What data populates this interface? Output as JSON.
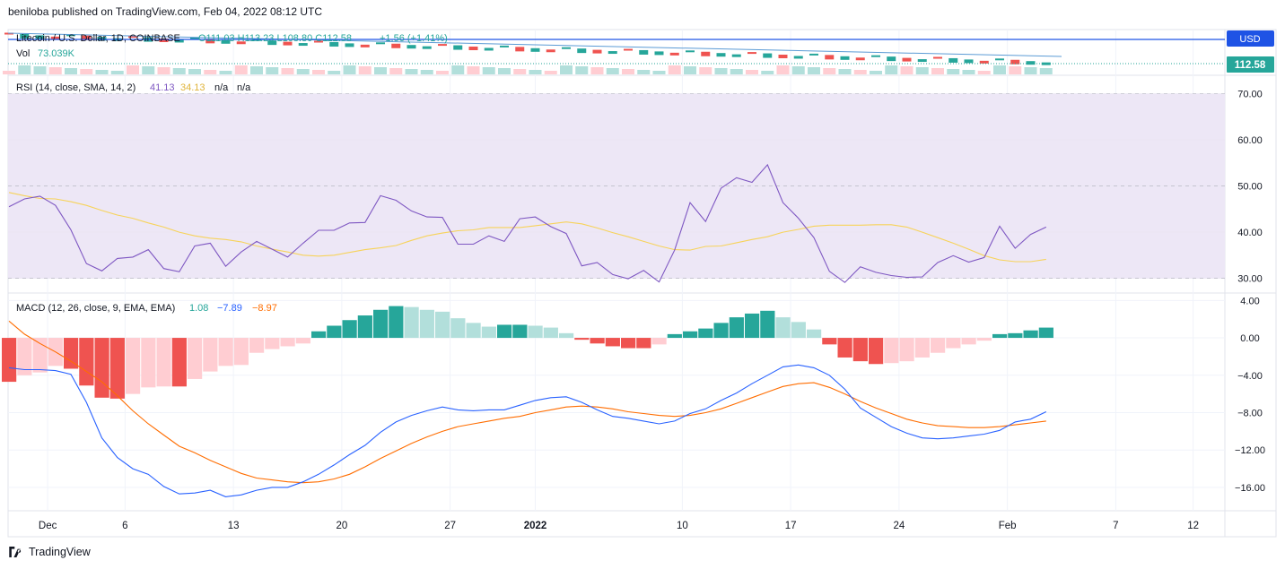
{
  "header": {
    "text": "beniloba published on TradingView.com, Feb 04, 2022 08:12 UTC"
  },
  "footer": {
    "brand": "TradingView"
  },
  "colors": {
    "bull": "#26a69a",
    "bear": "#ef5350",
    "bull_light": "#b2dfdb",
    "bear_light": "#ffcdd2",
    "rsi": "#7e57c2",
    "rsi_ma": "#f7d35a",
    "macd": "#2962ff",
    "signal": "#ff6d00",
    "rsi_band": "#ede7f6",
    "price_label": "#26a69a"
  },
  "chart_data": [
    {
      "type": "candlestick",
      "title": "Litecoin / U.S. Dollar, 1D, COINBASE",
      "ohlc_text": {
        "o": "O111.03",
        "h": "H113.23",
        "l": "L108.80",
        "c": "C112.58",
        "chg": "+1.56 (+1.41%)"
      },
      "volume_label": "Vol",
      "volume_value": "73.039K",
      "currency": "USD",
      "last_price": "112.58",
      "x_ticks": [
        "Dec",
        "6",
        "13",
        "20",
        "27",
        "2022",
        "10",
        "17",
        "24",
        "Feb",
        "7",
        "12"
      ]
    },
    {
      "type": "line",
      "name": "RSI",
      "legend": "RSI (14, close, SMA, 14, 2)",
      "legend_values": [
        "41.13",
        "34.13",
        "n/a",
        "n/a"
      ],
      "ylim": [
        27,
        74
      ],
      "y_ticks": [
        "70.00",
        "60.00",
        "50.00",
        "40.00",
        "30.00"
      ],
      "bands": [
        30,
        50,
        70
      ],
      "series": [
        {
          "name": "RSI",
          "values": [
            45.5,
            47.2,
            47.8,
            45.8,
            40.5,
            33.2,
            31.6,
            34.3,
            34.6,
            36.2,
            32.1,
            31.4,
            37.0,
            37.6,
            32.6,
            35.7,
            38.0,
            36.3,
            34.6,
            37.6,
            40.4,
            40.4,
            42.0,
            42.1,
            47.9,
            46.9,
            44.6,
            43.3,
            43.2,
            37.4,
            37.4,
            39.2,
            38.0,
            42.9,
            43.3,
            41.2,
            39.7,
            32.7,
            33.4,
            30.8,
            29.9,
            31.7,
            29.2,
            36.1,
            46.4,
            42.3,
            49.5,
            51.8,
            50.8,
            54.6,
            46.4,
            43.0,
            38.8,
            31.5,
            29.1,
            32.5,
            31.3,
            30.6,
            30.2,
            30.3,
            33.4,
            34.9,
            33.5,
            34.5,
            41.3,
            36.5,
            39.5,
            41.1
          ]
        },
        {
          "name": "RSI-based MA",
          "values": [
            48.6,
            47.9,
            47.3,
            47.2,
            46.6,
            45.8,
            44.7,
            43.7,
            43.0,
            42.0,
            41.1,
            40.0,
            39.2,
            38.7,
            38.4,
            37.9,
            37.0,
            36.3,
            35.7,
            35.0,
            34.8,
            35.0,
            35.6,
            36.2,
            36.6,
            37.1,
            38.2,
            39.2,
            39.8,
            40.3,
            40.5,
            41.0,
            41.0,
            41.0,
            41.4,
            41.8,
            42.2,
            41.8,
            40.9,
            39.9,
            39.0,
            38.0,
            37.0,
            36.2,
            36.1,
            36.9,
            37.0,
            37.7,
            38.4,
            39.0,
            40.0,
            40.6,
            41.3,
            41.5,
            41.5,
            41.5,
            41.6,
            41.6,
            41.1,
            40.0,
            38.8,
            37.6,
            36.3,
            34.9,
            34.0,
            33.6,
            33.6,
            34.1
          ]
        }
      ]
    },
    {
      "type": "bar",
      "name": "MACD",
      "legend": "MACD (12, 26, close, 9, EMA, EMA)",
      "legend_values": [
        "1.08",
        "−7.89",
        "−8.97"
      ],
      "ylim": [
        -18.5,
        4.8
      ],
      "y_ticks": [
        "4.00",
        "0.00",
        "−4.00",
        "−8.00",
        "−12.00",
        "−16.00"
      ],
      "series": [
        {
          "name": "Histogram",
          "values": [
            -4.7,
            -4.0,
            -3.7,
            -3.0,
            -3.3,
            -5.1,
            -6.4,
            -6.5,
            -6.0,
            -5.3,
            -5.2,
            -5.2,
            -4.4,
            -3.6,
            -3.0,
            -2.9,
            -1.6,
            -1.2,
            -0.9,
            -0.6,
            0.7,
            1.3,
            1.9,
            2.4,
            3.0,
            3.4,
            3.3,
            3.0,
            2.8,
            2.1,
            1.6,
            1.2,
            1.4,
            1.4,
            1.3,
            1.1,
            0.5,
            -0.2,
            -0.6,
            -0.9,
            -1.1,
            -1.1,
            -0.7,
            0.4,
            0.7,
            1.0,
            1.6,
            2.2,
            2.6,
            2.9,
            2.2,
            1.7,
            0.9,
            -0.7,
            -2.1,
            -2.5,
            -2.8,
            -2.7,
            -2.5,
            -2.1,
            -1.6,
            -1.1,
            -0.7,
            -0.3,
            0.4,
            0.5,
            0.8,
            1.1
          ]
        },
        {
          "name": "MACD",
          "values": [
            -3.2,
            -3.4,
            -3.4,
            -3.5,
            -3.9,
            -6.9,
            -10.7,
            -12.8,
            -14.0,
            -14.6,
            -15.9,
            -16.7,
            -16.6,
            -16.3,
            -17.0,
            -16.8,
            -16.3,
            -16.0,
            -16.0,
            -15.4,
            -14.6,
            -13.6,
            -12.5,
            -11.5,
            -10.1,
            -9.0,
            -8.3,
            -7.8,
            -7.4,
            -7.7,
            -7.8,
            -7.7,
            -7.7,
            -7.2,
            -6.7,
            -6.4,
            -6.3,
            -6.9,
            -7.7,
            -8.4,
            -8.6,
            -8.9,
            -9.2,
            -8.9,
            -8.1,
            -7.6,
            -6.7,
            -5.9,
            -4.9,
            -4.0,
            -3.1,
            -2.9,
            -3.2,
            -4.0,
            -5.5,
            -7.5,
            -8.5,
            -9.5,
            -10.2,
            -10.7,
            -10.8,
            -10.7,
            -10.5,
            -10.3,
            -9.9,
            -9.0,
            -8.7,
            -7.9
          ]
        },
        {
          "name": "Signal",
          "values": [
            1.8,
            0.4,
            -0.6,
            -1.5,
            -2.5,
            -3.6,
            -4.7,
            -6.2,
            -7.8,
            -9.2,
            -10.4,
            -11.6,
            -12.3,
            -13.1,
            -13.8,
            -14.5,
            -15.0,
            -15.2,
            -15.4,
            -15.5,
            -15.4,
            -15.1,
            -14.6,
            -13.8,
            -12.9,
            -12.1,
            -11.3,
            -10.6,
            -10.0,
            -9.5,
            -9.2,
            -8.9,
            -8.6,
            -8.4,
            -8.0,
            -7.7,
            -7.4,
            -7.3,
            -7.4,
            -7.6,
            -7.9,
            -8.1,
            -8.3,
            -8.4,
            -8.3,
            -8.0,
            -7.6,
            -7.0,
            -6.4,
            -5.8,
            -5.2,
            -4.9,
            -4.8,
            -5.3,
            -6.0,
            -6.8,
            -7.5,
            -8.1,
            -8.7,
            -9.1,
            -9.4,
            -9.5,
            -9.6,
            -9.6,
            -9.5,
            -9.3,
            -9.1,
            -8.9
          ]
        }
      ]
    }
  ]
}
